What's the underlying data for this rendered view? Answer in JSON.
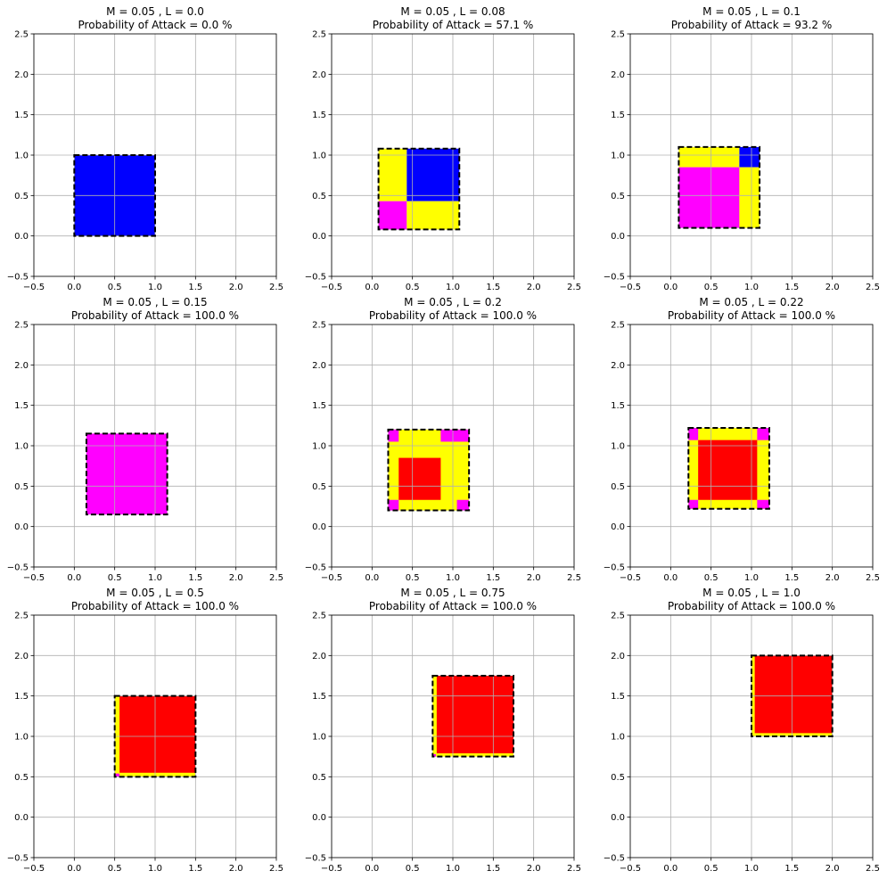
{
  "chart_data": [
    {
      "type": "heatmap",
      "title_line1": "M = 0.05 , L = 0.0",
      "title_line2": "Probability of Attack = 0.0 %",
      "M": 0.05,
      "L": 0.0,
      "probability_of_attack": 0.0,
      "xlim": [
        -0.5,
        2.5
      ],
      "ylim": [
        -0.5,
        2.5
      ],
      "xticks": [
        "−0.5",
        "0.0",
        "0.5",
        "1.0",
        "1.5",
        "2.0",
        "2.5"
      ],
      "yticks": [
        "−0.5",
        "0.0",
        "0.5",
        "1.0",
        "1.5",
        "2.0",
        "2.5"
      ],
      "grid": true,
      "region_outline": [
        0.0,
        0.0,
        1.0,
        1.0
      ],
      "regions": [
        {
          "x0": 0.0,
          "y0": 0.0,
          "x1": 1.0,
          "y1": 1.0,
          "color": "#0000ff"
        }
      ]
    },
    {
      "type": "heatmap",
      "title_line1": "M = 0.05 , L = 0.08",
      "title_line2": "Probability of Attack = 57.1 %",
      "M": 0.05,
      "L": 0.08,
      "probability_of_attack": 57.1,
      "xlim": [
        -0.5,
        2.5
      ],
      "ylim": [
        -0.5,
        2.5
      ],
      "xticks": [
        "−0.5",
        "0.0",
        "0.5",
        "1.0",
        "1.5",
        "2.0",
        "2.5"
      ],
      "yticks": [
        "−0.5",
        "0.0",
        "0.5",
        "1.0",
        "1.5",
        "2.0",
        "2.5"
      ],
      "grid": true,
      "region_outline": [
        0.08,
        0.08,
        1.08,
        1.08
      ],
      "regions": [
        {
          "x0": 0.08,
          "y0": 0.43,
          "x1": 0.43,
          "y1": 1.08,
          "color": "#ffff00"
        },
        {
          "x0": 0.43,
          "y0": 0.43,
          "x1": 1.08,
          "y1": 1.08,
          "color": "#0000ff"
        },
        {
          "x0": 0.08,
          "y0": 0.08,
          "x1": 0.43,
          "y1": 0.43,
          "color": "#ff00ff"
        },
        {
          "x0": 0.43,
          "y0": 0.08,
          "x1": 1.08,
          "y1": 0.43,
          "color": "#ffff00"
        }
      ]
    },
    {
      "type": "heatmap",
      "title_line1": "M = 0.05 , L = 0.1",
      "title_line2": "Probability of Attack = 93.2 %",
      "M": 0.05,
      "L": 0.1,
      "probability_of_attack": 93.2,
      "xlim": [
        -0.5,
        2.5
      ],
      "ylim": [
        -0.5,
        2.5
      ],
      "xticks": [
        "−0.5",
        "0.0",
        "0.5",
        "1.0",
        "1.5",
        "2.0",
        "2.5"
      ],
      "yticks": [
        "−0.5",
        "0.0",
        "0.5",
        "1.0",
        "1.5",
        "2.0",
        "2.5"
      ],
      "grid": true,
      "region_outline": [
        0.1,
        0.1,
        1.1,
        1.1
      ],
      "regions": [
        {
          "x0": 0.1,
          "y0": 0.85,
          "x1": 0.85,
          "y1": 1.1,
          "color": "#ffff00"
        },
        {
          "x0": 0.85,
          "y0": 0.85,
          "x1": 1.1,
          "y1": 1.1,
          "color": "#0000ff"
        },
        {
          "x0": 0.1,
          "y0": 0.1,
          "x1": 0.85,
          "y1": 0.85,
          "color": "#ff00ff"
        },
        {
          "x0": 0.85,
          "y0": 0.1,
          "x1": 1.1,
          "y1": 0.85,
          "color": "#ffff00"
        }
      ]
    },
    {
      "type": "heatmap",
      "title_line1": "M = 0.05 , L = 0.15",
      "title_line2": "Probability of Attack = 100.0 %",
      "M": 0.05,
      "L": 0.15,
      "probability_of_attack": 100.0,
      "xlim": [
        -0.5,
        2.5
      ],
      "ylim": [
        -0.5,
        2.5
      ],
      "xticks": [
        "−0.5",
        "0.0",
        "0.5",
        "1.0",
        "1.5",
        "2.0",
        "2.5"
      ],
      "yticks": [
        "−0.5",
        "0.0",
        "0.5",
        "1.0",
        "1.5",
        "2.0",
        "2.5"
      ],
      "grid": true,
      "region_outline": [
        0.15,
        0.15,
        1.15,
        1.15
      ],
      "regions": [
        {
          "x0": 0.15,
          "y0": 0.15,
          "x1": 1.15,
          "y1": 1.15,
          "color": "#ff00ff"
        }
      ]
    },
    {
      "type": "heatmap",
      "title_line1": "M = 0.05 , L = 0.2",
      "title_line2": "Probability of Attack = 100.0 %",
      "M": 0.05,
      "L": 0.2,
      "probability_of_attack": 100.0,
      "xlim": [
        -0.5,
        2.5
      ],
      "ylim": [
        -0.5,
        2.5
      ],
      "xticks": [
        "−0.5",
        "0.0",
        "0.5",
        "1.0",
        "1.5",
        "2.0",
        "2.5"
      ],
      "yticks": [
        "−0.5",
        "0.0",
        "0.5",
        "1.0",
        "1.5",
        "2.0",
        "2.5"
      ],
      "grid": true,
      "region_outline": [
        0.2,
        0.2,
        1.2,
        1.2
      ],
      "regions": [
        {
          "x0": 0.2,
          "y0": 0.2,
          "x1": 1.2,
          "y1": 1.2,
          "color": "#ffff00"
        },
        {
          "x0": 0.2,
          "y0": 0.2,
          "x1": 0.33,
          "y1": 0.33,
          "color": "#ff00ff"
        },
        {
          "x0": 1.05,
          "y0": 0.2,
          "x1": 1.2,
          "y1": 0.33,
          "color": "#ff00ff"
        },
        {
          "x0": 0.2,
          "y0": 1.05,
          "x1": 0.33,
          "y1": 1.2,
          "color": "#ff00ff"
        },
        {
          "x0": 0.85,
          "y0": 1.05,
          "x1": 1.2,
          "y1": 1.2,
          "color": "#ff00ff"
        },
        {
          "x0": 0.33,
          "y0": 0.33,
          "x1": 0.85,
          "y1": 0.85,
          "color": "#ff0000"
        }
      ]
    },
    {
      "type": "heatmap",
      "title_line1": "M = 0.05 , L = 0.22",
      "title_line2": "Probability of Attack = 100.0 %",
      "M": 0.05,
      "L": 0.22,
      "probability_of_attack": 100.0,
      "xlim": [
        -0.5,
        2.5
      ],
      "ylim": [
        -0.5,
        2.5
      ],
      "xticks": [
        "−0.5",
        "0.0",
        "0.5",
        "1.0",
        "1.5",
        "2.0",
        "2.5"
      ],
      "yticks": [
        "−0.5",
        "0.0",
        "0.5",
        "1.0",
        "1.5",
        "2.0",
        "2.5"
      ],
      "grid": true,
      "region_outline": [
        0.22,
        0.22,
        1.22,
        1.22
      ],
      "regions": [
        {
          "x0": 0.22,
          "y0": 0.22,
          "x1": 1.22,
          "y1": 1.22,
          "color": "#ffff00"
        },
        {
          "x0": 0.22,
          "y0": 0.22,
          "x1": 0.34,
          "y1": 0.33,
          "color": "#ff00ff"
        },
        {
          "x0": 1.07,
          "y0": 0.22,
          "x1": 1.22,
          "y1": 0.33,
          "color": "#ff00ff"
        },
        {
          "x0": 0.22,
          "y0": 1.07,
          "x1": 0.34,
          "y1": 1.22,
          "color": "#ff00ff"
        },
        {
          "x0": 1.07,
          "y0": 1.07,
          "x1": 1.22,
          "y1": 1.22,
          "color": "#ff00ff"
        },
        {
          "x0": 0.34,
          "y0": 0.33,
          "x1": 1.07,
          "y1": 1.07,
          "color": "#ff0000"
        }
      ]
    },
    {
      "type": "heatmap",
      "title_line1": "M = 0.05 , L = 0.5",
      "title_line2": "Probability of Attack = 100.0 %",
      "M": 0.05,
      "L": 0.5,
      "probability_of_attack": 100.0,
      "xlim": [
        -0.5,
        2.5
      ],
      "ylim": [
        -0.5,
        2.5
      ],
      "xticks": [
        "−0.5",
        "0.0",
        "0.5",
        "1.0",
        "1.5",
        "2.0",
        "2.5"
      ],
      "yticks": [
        "−0.5",
        "0.0",
        "0.5",
        "1.0",
        "1.5",
        "2.0",
        "2.5"
      ],
      "grid": true,
      "region_outline": [
        0.5,
        0.5,
        1.5,
        1.5
      ],
      "regions": [
        {
          "x0": 0.5,
          "y0": 0.5,
          "x1": 1.5,
          "y1": 1.5,
          "color": "#ffff00"
        },
        {
          "x0": 0.5,
          "y0": 0.5,
          "x1": 0.56,
          "y1": 0.54,
          "color": "#ff00ff"
        },
        {
          "x0": 0.56,
          "y0": 0.55,
          "x1": 1.5,
          "y1": 1.5,
          "color": "#ff0000"
        }
      ]
    },
    {
      "type": "heatmap",
      "title_line1": "M = 0.05 , L = 0.75",
      "title_line2": "Probability of Attack = 100.0 %",
      "M": 0.05,
      "L": 0.75,
      "probability_of_attack": 100.0,
      "xlim": [
        -0.5,
        2.5
      ],
      "ylim": [
        -0.5,
        2.5
      ],
      "xticks": [
        "−0.5",
        "0.0",
        "0.5",
        "1.0",
        "1.5",
        "2.0",
        "2.5"
      ],
      "yticks": [
        "−0.5",
        "0.0",
        "0.5",
        "1.0",
        "1.5",
        "2.0",
        "2.5"
      ],
      "grid": true,
      "region_outline": [
        0.75,
        0.75,
        1.75,
        1.75
      ],
      "regions": [
        {
          "x0": 0.75,
          "y0": 0.75,
          "x1": 1.75,
          "y1": 1.75,
          "color": "#ffff00"
        },
        {
          "x0": 0.75,
          "y0": 0.75,
          "x1": 0.79,
          "y1": 0.78,
          "color": "#ff00ff"
        },
        {
          "x0": 0.8,
          "y0": 0.79,
          "x1": 1.75,
          "y1": 1.75,
          "color": "#ff0000"
        }
      ]
    },
    {
      "type": "heatmap",
      "title_line1": "M = 0.05 , L = 1.0",
      "title_line2": "Probability of Attack = 100.0 %",
      "M": 0.05,
      "L": 1.0,
      "probability_of_attack": 100.0,
      "xlim": [
        -0.5,
        2.5
      ],
      "ylim": [
        -0.5,
        2.5
      ],
      "xticks": [
        "−0.5",
        "0.0",
        "0.5",
        "1.0",
        "1.5",
        "2.0",
        "2.5"
      ],
      "yticks": [
        "−0.5",
        "0.0",
        "0.5",
        "1.0",
        "1.5",
        "2.0",
        "2.5"
      ],
      "grid": true,
      "region_outline": [
        1.0,
        1.0,
        2.0,
        2.0
      ],
      "regions": [
        {
          "x0": 1.0,
          "y0": 1.0,
          "x1": 2.0,
          "y1": 2.0,
          "color": "#ffff00"
        },
        {
          "x0": 1.04,
          "y0": 1.04,
          "x1": 2.0,
          "y1": 2.0,
          "color": "#ff0000"
        }
      ]
    }
  ]
}
